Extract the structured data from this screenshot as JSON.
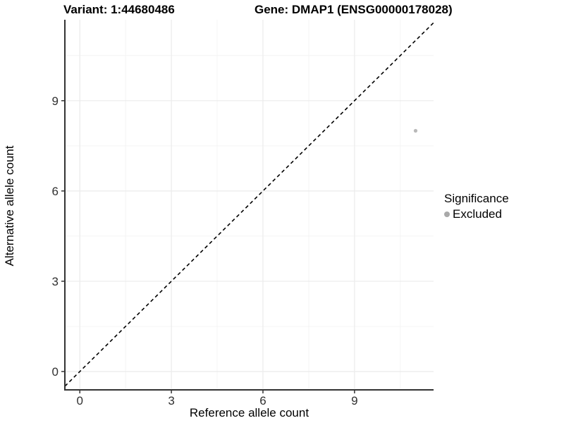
{
  "figure": {
    "title_left": "Variant: 1:44680486",
    "title_right": "Gene: DMAP1 (ENSG00000178028)"
  },
  "chart_data": {
    "type": "scatter",
    "title": "Variant: 1:44680486   Gene: DMAP1 (ENSG00000178028)",
    "xlabel": "Reference allele count",
    "ylabel": "Alternative allele count",
    "xlim": [
      -0.49,
      11.59
    ],
    "ylim": [
      -0.61,
      11.69
    ],
    "x_ticks": [
      0,
      3,
      6,
      9
    ],
    "y_ticks": [
      0,
      3,
      6,
      9
    ],
    "x_minor_ticks": [
      1.5,
      4.5,
      7.5,
      10.5
    ],
    "y_minor_ticks": [
      1.5,
      4.5,
      7.5,
      10.5
    ],
    "grid": "major+minor",
    "identity_line": {
      "slope": 1,
      "intercept": 0,
      "style": "dashed",
      "color": "#000000"
    },
    "series": [
      {
        "name": "Excluded",
        "color": "#b9b9b9",
        "points": [
          {
            "x": 11,
            "y": 8
          }
        ]
      }
    ],
    "legend": {
      "title": "Significance",
      "position": "right",
      "entries": [
        {
          "label": "Excluded",
          "color": "#a9a9a9"
        }
      ]
    },
    "colors": {
      "background": "#ffffff",
      "axis_line": "#333333",
      "tick_label": "#303030",
      "grid_major": "#ebebeb",
      "grid_minor": "#f4f4f4"
    }
  }
}
